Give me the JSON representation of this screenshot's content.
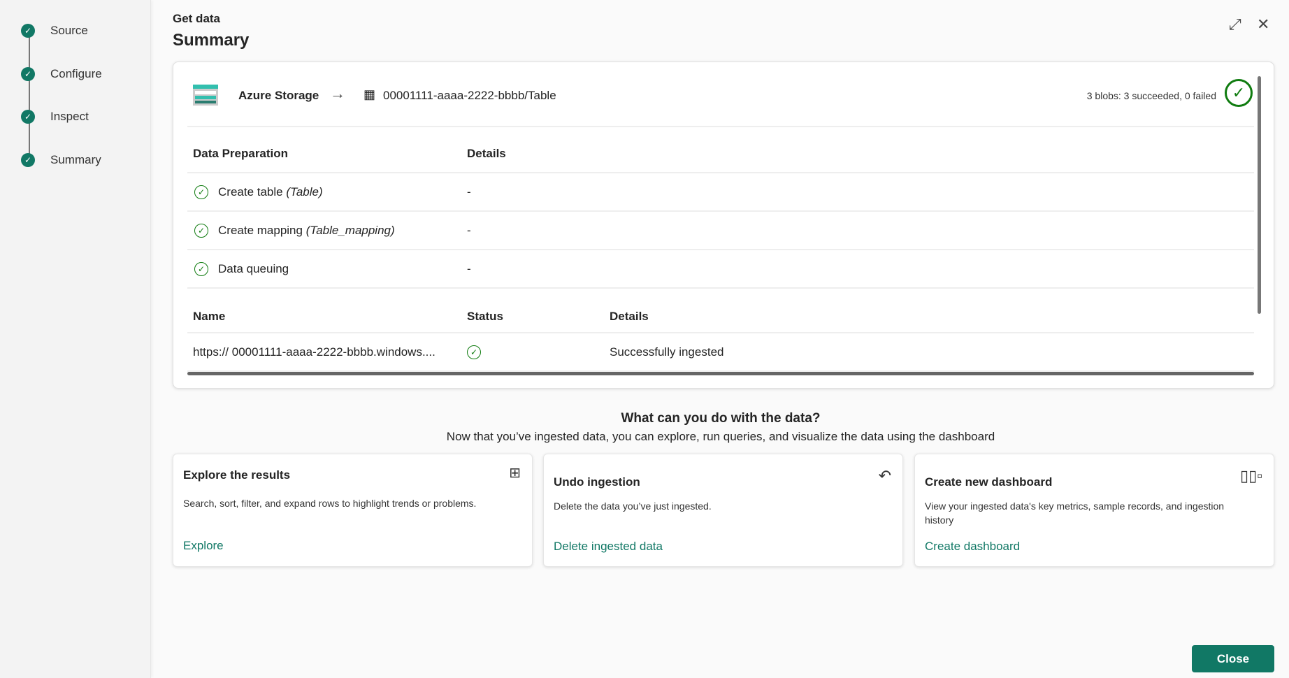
{
  "steps": [
    "Source",
    "Configure",
    "Inspect",
    "Summary"
  ],
  "header": {
    "pre": "Get data",
    "title": "Summary"
  },
  "card": {
    "source": "Azure Storage",
    "table": "00001111-aaaa-2222-bbbb/Table",
    "count": "3 blobs: 3 succeeded, 0 failed"
  },
  "prep": {
    "col1": "Data Preparation",
    "col2": "Details",
    "rows": [
      {
        "label": "Create table",
        "italic": "(Table)",
        "details": "-"
      },
      {
        "label": "Create mapping",
        "italic": "(Table_mapping)",
        "details": "-"
      },
      {
        "label": "Data queuing",
        "italic": "",
        "details": "-"
      }
    ]
  },
  "blobs": {
    "col1": "Name",
    "col2": "Status",
    "col3": "Details",
    "rows": [
      {
        "name": "https:// 00001111-aaaa-2222-bbbb.windows....",
        "details": "Successfully ingested"
      }
    ]
  },
  "next": {
    "title": "What can you do with the data?",
    "subtitle": "Now that you’ve ingested data, you can explore, run queries, and visualize the data using the dashboard"
  },
  "actions": [
    {
      "title": "Explore the results",
      "desc": "Search, sort, filter, and expand rows to highlight trends or problems.",
      "link": "Explore",
      "icon": "table-search-icon"
    },
    {
      "title": "Undo ingestion",
      "desc": "Delete the data you’ve just ingested.",
      "link": "Delete ingested data",
      "icon": "undo-icon"
    },
    {
      "title": "Create new dashboard",
      "desc": "View your ingested data's key metrics, sample records, and ingestion history",
      "link": "Create dashboard",
      "icon": "dashboard-icon"
    }
  ],
  "close_label": "Close",
  "colors": {
    "accent": "#117865",
    "success": "#107c10"
  }
}
